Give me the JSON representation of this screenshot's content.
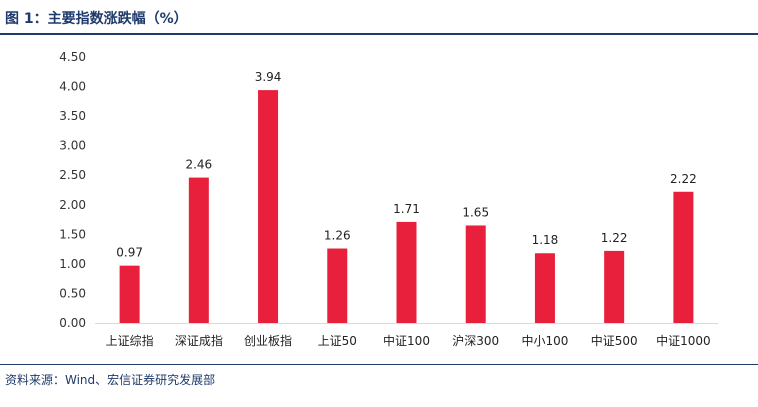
{
  "header": {
    "title": "图 1：主要指数涨跌幅（%）"
  },
  "footer": {
    "source": "资料来源：Wind、宏信证券研究发展部"
  },
  "colors": {
    "bar": "#e8203c",
    "accent": "#1f3a6b",
    "axis": "#d9d9d9"
  },
  "chart_data": {
    "type": "bar",
    "title": "",
    "xlabel": "",
    "ylabel": "",
    "categories": [
      "上证综指",
      "深证成指",
      "创业板指",
      "上证50",
      "中证100",
      "沪深300",
      "中小100",
      "中证500",
      "中证1000"
    ],
    "values": [
      0.97,
      2.46,
      3.94,
      1.26,
      1.71,
      1.65,
      1.18,
      1.22,
      2.22
    ],
    "value_labels": [
      "0.97",
      "2.46",
      "3.94",
      "1.26",
      "1.71",
      "1.65",
      "1.18",
      "1.22",
      "2.22"
    ],
    "ylim": [
      0,
      4.5
    ],
    "yticks": [
      "0.00",
      "0.50",
      "1.00",
      "1.50",
      "2.00",
      "2.50",
      "3.00",
      "3.50",
      "4.00",
      "4.50"
    ],
    "grid": false,
    "legend": "none"
  }
}
